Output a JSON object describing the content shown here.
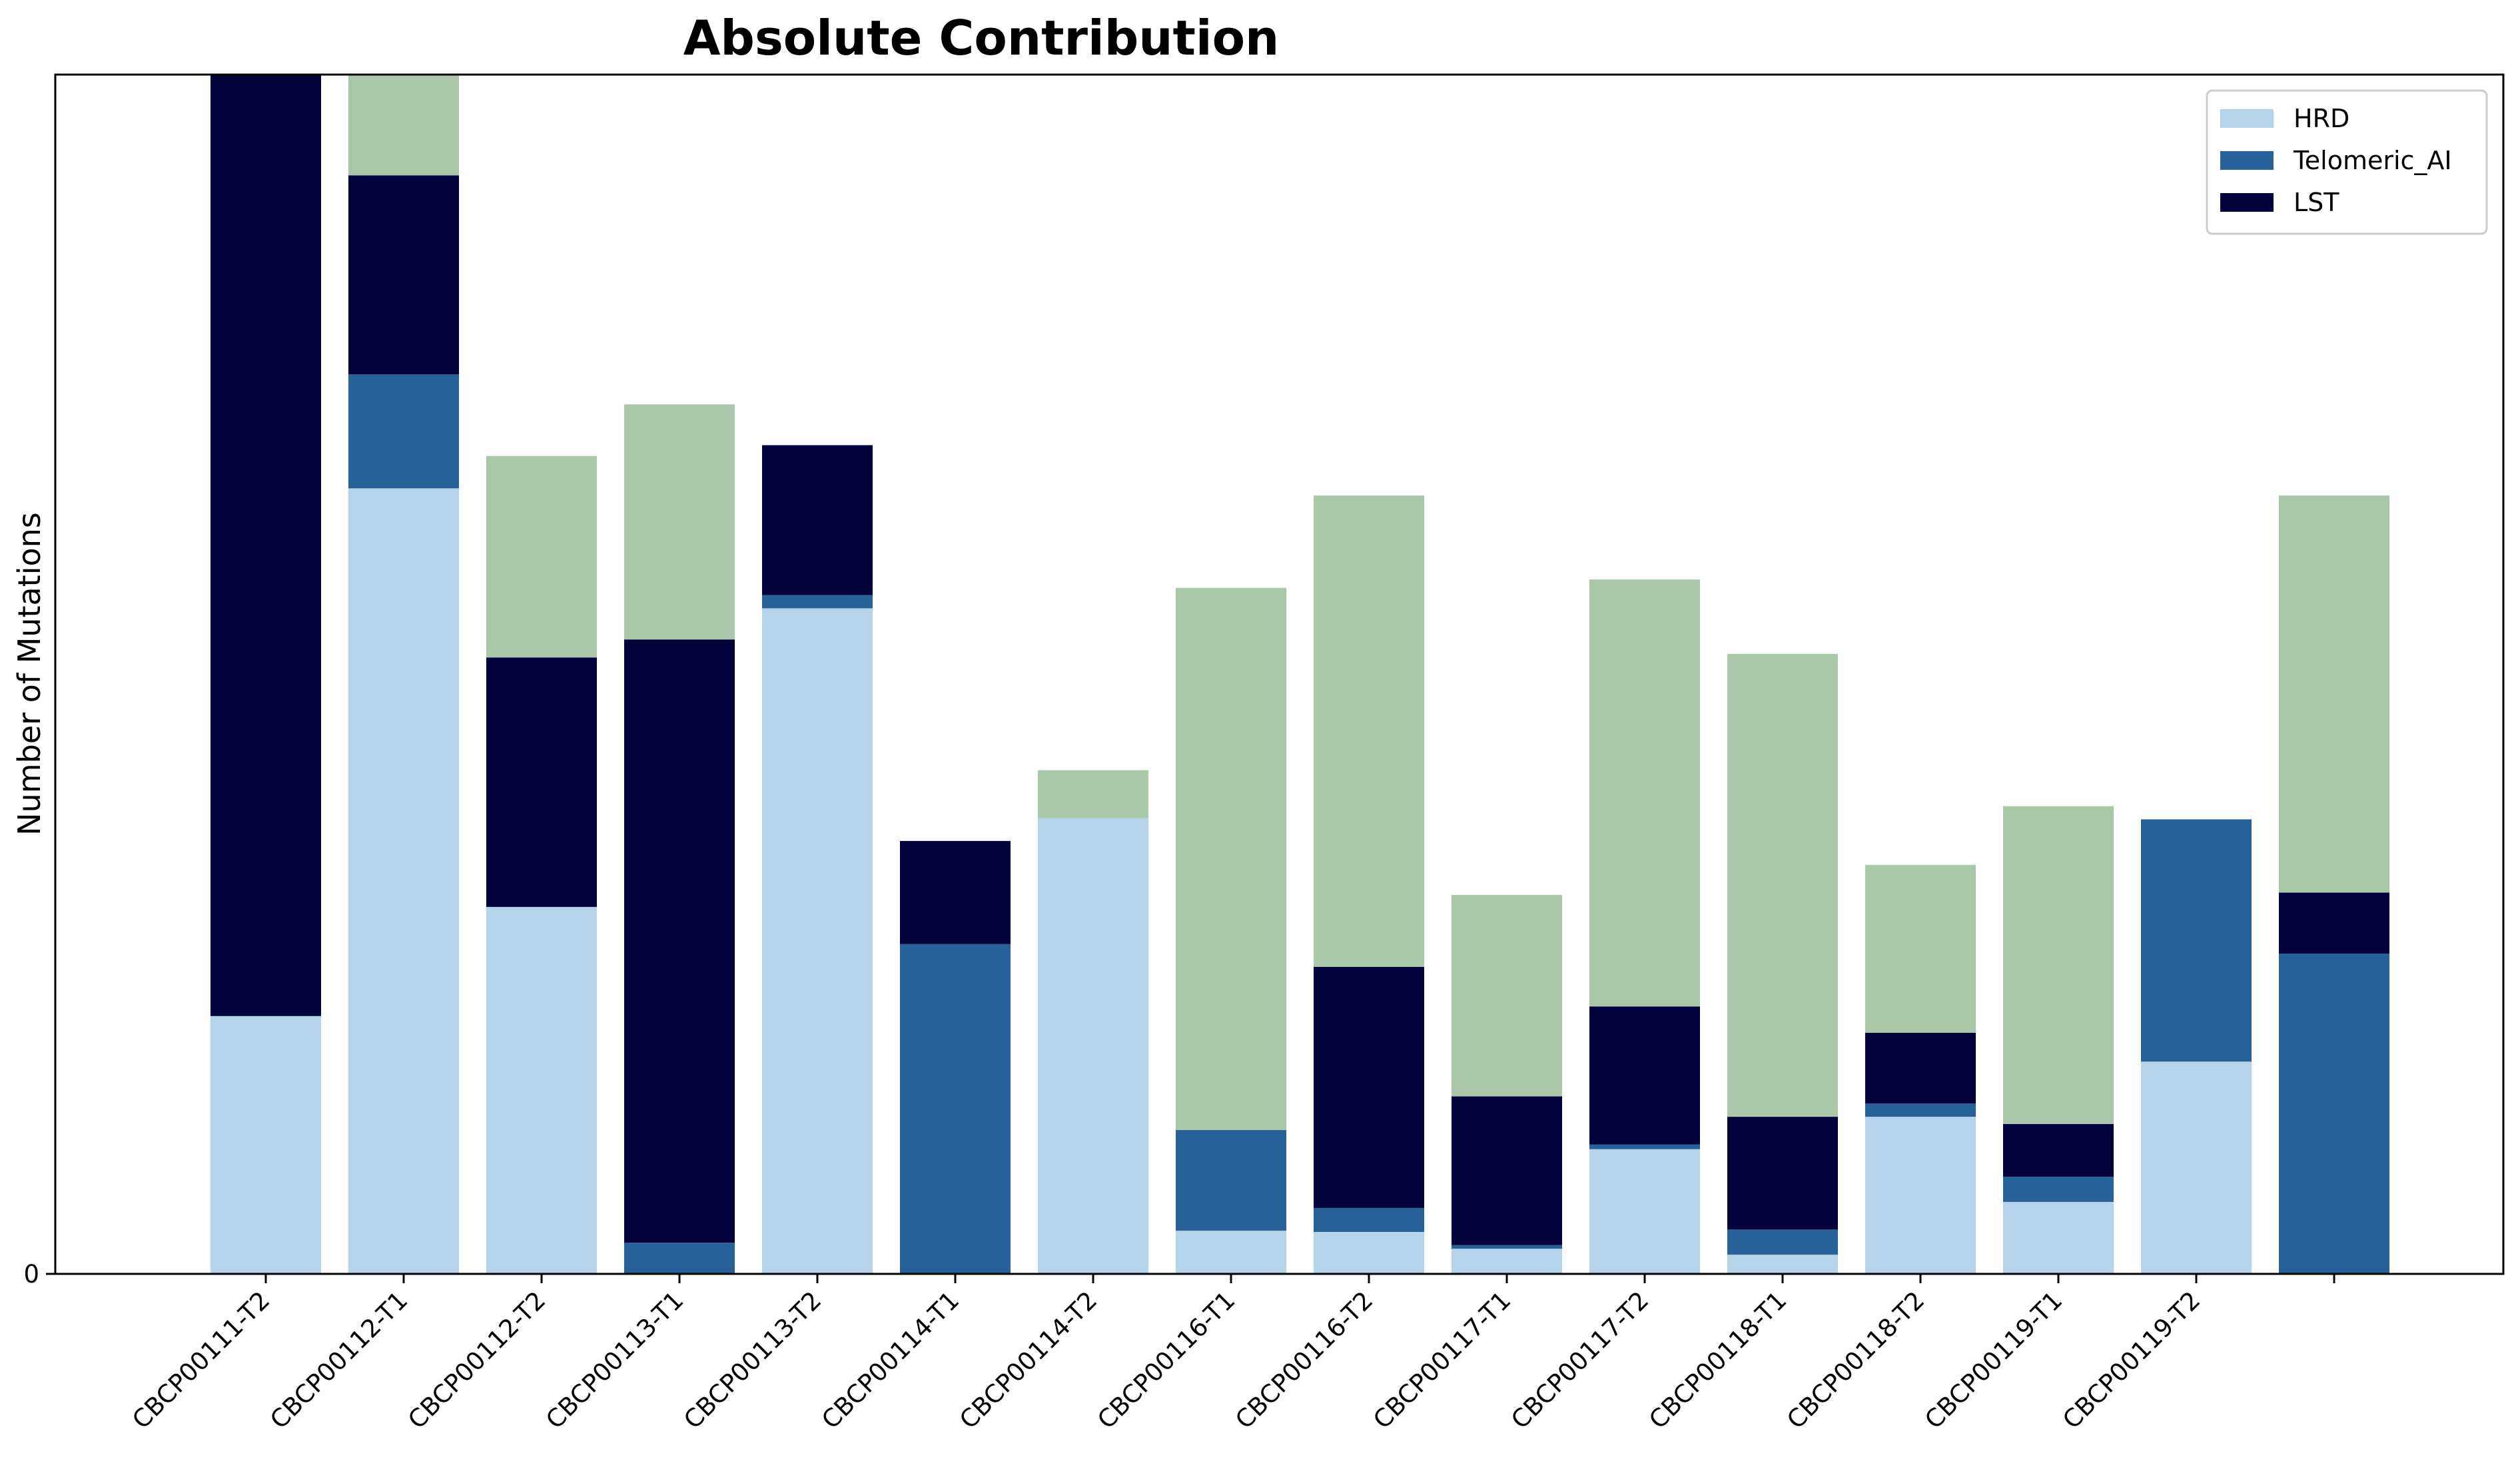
{
  "chart_data": {
    "type": "bar",
    "stacked": true,
    "title": "Absolute Contribution",
    "xlabel": "",
    "ylabel": "Number of Mutations",
    "ylim": [
      0,
      100
    ],
    "y_tick_labels": [
      "0"
    ],
    "grid": false,
    "legend_position": "top-right",
    "categories": [
      "CBCP00111-T2",
      "CBCP00112-T1",
      "CBCP00112-T2",
      "CBCP00113-T1",
      "CBCP00113-T2",
      "CBCP00114-T1",
      "CBCP00114-T2",
      "CBCP00116-T1",
      "CBCP00116-T2",
      "CBCP00117-T1",
      "CBCP00117-T2",
      "CBCP00118-T1",
      "CBCP00118-T2",
      "CBCP00119-T1",
      "CBCP00119-T2",
      ""
    ],
    "series": [
      {
        "name": "HRD",
        "color": "#b6d4e9",
        "values": [
          21.5,
          65.5,
          30.6,
          0,
          55.5,
          0,
          38.0,
          3.6,
          3.5,
          2.1,
          10.4,
          1.6,
          13.1,
          6.0,
          17.7,
          0
        ]
      },
      {
        "name": "Telomeric_AI",
        "color": "#26619a",
        "values": [
          0,
          9.5,
          0,
          2.6,
          1.1,
          27.5,
          0,
          8.4,
          2.0,
          0.3,
          0.4,
          2.1,
          1.1,
          2.1,
          20.2,
          26.7
        ]
      },
      {
        "name": "LST",
        "color": "#01023b",
        "values": [
          78.5,
          16.6,
          20.8,
          50.3,
          12.5,
          8.6,
          0,
          0,
          20.1,
          12.4,
          11.5,
          9.4,
          5.9,
          4.4,
          0,
          5.1
        ]
      },
      {
        "color": "#abc7a9",
        "values": [
          0,
          8.4,
          16.8,
          19.6,
          0,
          0,
          4.0,
          45.2,
          39.3,
          16.8,
          35.6,
          38.6,
          14.0,
          26.5,
          0,
          33.1
        ]
      }
    ]
  }
}
